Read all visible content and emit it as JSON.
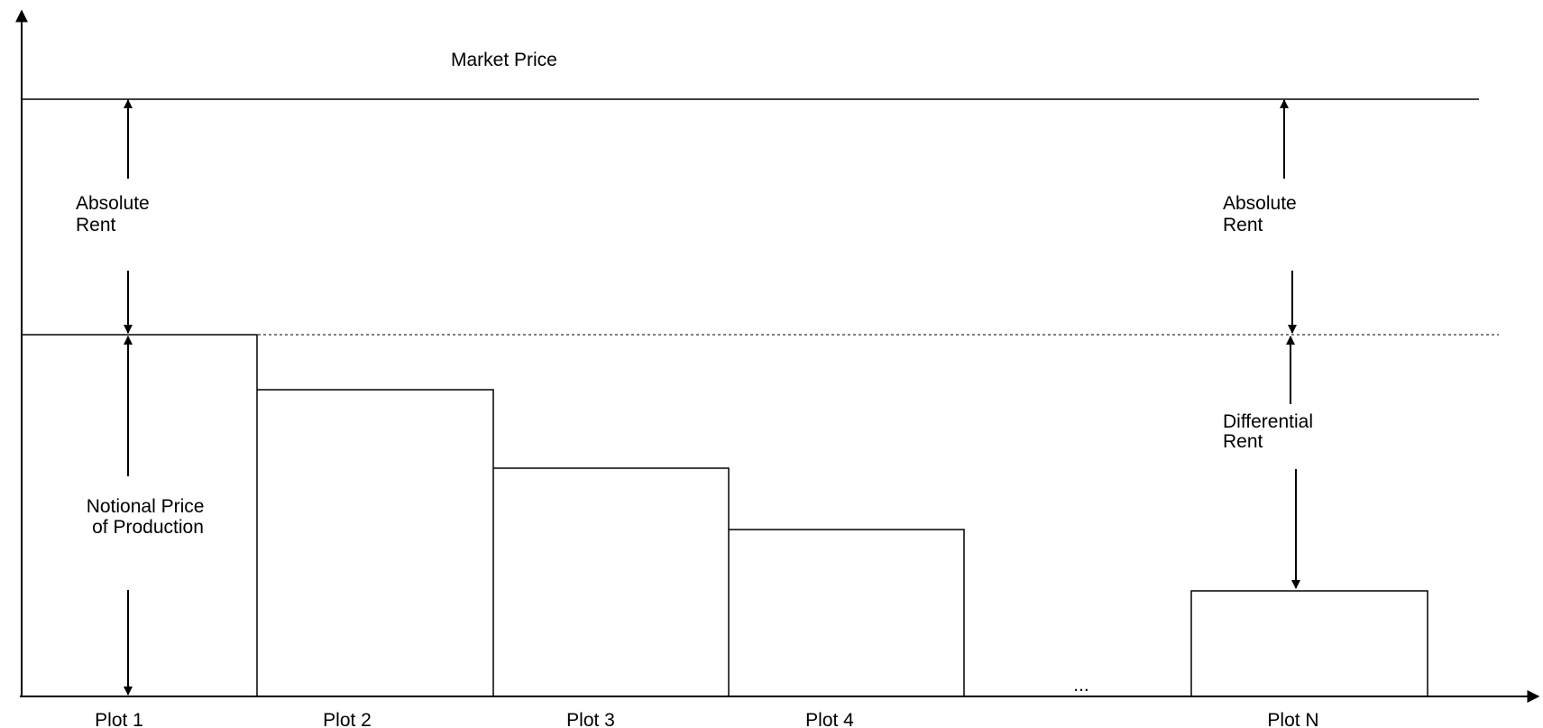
{
  "labels": {
    "market_price": "Market Price",
    "absolute_rent_left": [
      "Absolute",
      "Rent"
    ],
    "absolute_rent_right": [
      "Absolute",
      "Rent"
    ],
    "notional_price": [
      "Notional Price",
      "of Production"
    ],
    "differential_rent": [
      "Differential",
      "Rent"
    ],
    "ellipsis": "..."
  },
  "plots": [
    "Plot 1",
    "Plot 2",
    "Plot 3",
    "Plot 4",
    "Plot N"
  ]
}
